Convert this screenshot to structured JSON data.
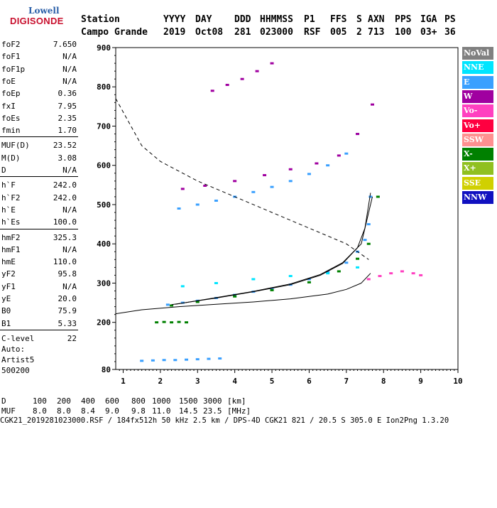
{
  "logo": {
    "top": "Lowell",
    "main": "DIGISONDE"
  },
  "header": {
    "labels": [
      "Station",
      "YYYY",
      "DAY",
      "DDD",
      "HHMMSS",
      "P1",
      "FFS",
      "S",
      "AXN",
      "PPS",
      "IGA",
      "PS"
    ],
    "values": [
      "Campo Grande",
      "2019",
      "Oct08",
      "281",
      "023000",
      "RSF",
      "005",
      "2",
      "713",
      "100",
      "03+",
      "36"
    ]
  },
  "parameters": [
    {
      "label": "foF2",
      "value": "7.650"
    },
    {
      "label": "foF1",
      "value": "N/A"
    },
    {
      "label": "foF1p",
      "value": "N/A"
    },
    {
      "label": "foE",
      "value": "N/A"
    },
    {
      "label": "foEp",
      "value": "0.36"
    },
    {
      "label": "fxI",
      "value": "7.95"
    },
    {
      "label": "foEs",
      "value": "2.35"
    },
    {
      "label": "fmin",
      "value": "1.70"
    },
    {
      "label": "MUF(D)",
      "value": "23.52"
    },
    {
      "label": "M(D)",
      "value": "3.08"
    },
    {
      "label": "D",
      "value": "N/A"
    },
    {
      "label": "h`F",
      "value": "242.0"
    },
    {
      "label": "h`F2",
      "value": "242.0"
    },
    {
      "label": "h`E",
      "value": "N/A"
    },
    {
      "label": "h`Es",
      "value": "100.0"
    },
    {
      "label": "hmF2",
      "value": "325.3"
    },
    {
      "label": "hmF1",
      "value": "N/A"
    },
    {
      "label": "hmE",
      "value": "110.0"
    },
    {
      "label": "yF2",
      "value": "95.8"
    },
    {
      "label": "yF1",
      "value": "N/A"
    },
    {
      "label": "yE",
      "value": "20.0"
    },
    {
      "label": "B0",
      "value": "75.9"
    },
    {
      "label": "B1",
      "value": "5.33"
    },
    {
      "label": "C-level",
      "value": "22"
    }
  ],
  "auto": {
    "title": "Auto:",
    "program": "Artist5",
    "code": "500200"
  },
  "legend": [
    {
      "label": "NoVal",
      "color": "#808080"
    },
    {
      "label": "NNE",
      "color": "#00e5ff"
    },
    {
      "label": "E",
      "color": "#3aa0ff"
    },
    {
      "label": "W",
      "color": "#a000a0"
    },
    {
      "label": "Vo-",
      "color": "#ff40c0"
    },
    {
      "label": "Vo+",
      "color": "#ff0040"
    },
    {
      "label": "SSW",
      "color": "#ff9090"
    },
    {
      "label": "X-",
      "color": "#008000"
    },
    {
      "label": "X+",
      "color": "#90c020"
    },
    {
      "label": "SSE",
      "color": "#d0d000"
    },
    {
      "label": "NNW",
      "color": "#1010c0"
    }
  ],
  "footer": {
    "row_d": {
      "label": "D",
      "values": [
        "100",
        "200",
        "400",
        "600",
        "800",
        "1000",
        "1500",
        "3000",
        "[km]"
      ]
    },
    "row_muf": {
      "label": "MUF",
      "values": [
        "8.0",
        "8.0",
        "8.4",
        "9.0",
        "9.8",
        "11.0",
        "14.5",
        "23.5",
        "[MHz]"
      ]
    },
    "file_line": "CGK21_2019281023000.RSF / 184fx512h 50 kHz 2.5 km / DPS-4D CGK21 821 / 20.5 S 305.0 E Ion2Png 1.3.20"
  },
  "chart_data": {
    "type": "scatter",
    "title": "",
    "xlabel": "",
    "ylabel": "",
    "xlim": [
      0.8,
      10
    ],
    "ylim": [
      80,
      900
    ],
    "x_ticks": [
      1,
      2,
      3,
      4,
      5,
      6,
      7,
      8,
      9,
      10
    ],
    "y_ticks": [
      80,
      200,
      300,
      400,
      500,
      600,
      700,
      800,
      900
    ],
    "traces": [
      {
        "name": "E",
        "band": "o-trace",
        "x": [
          2.2,
          2.6,
          3.0,
          3.5,
          4.0,
          4.5,
          5.0,
          5.5,
          6.0,
          6.5,
          7.0,
          7.3,
          7.5,
          7.6,
          7.65
        ],
        "y": [
          245,
          250,
          255,
          262,
          270,
          278,
          286,
          296,
          310,
          328,
          352,
          380,
          410,
          450,
          520
        ]
      },
      {
        "name": "X-",
        "band": "x-trace",
        "x": [
          2.3,
          3.0,
          4.0,
          5.0,
          6.0,
          6.8,
          7.3,
          7.6,
          7.85
        ],
        "y": [
          243,
          252,
          266,
          282,
          302,
          330,
          362,
          400,
          520
        ]
      },
      {
        "name": "E",
        "band": "2nd-hop",
        "x": [
          2.5,
          3.0,
          3.5,
          4.0,
          4.5,
          5.0,
          5.5,
          6.0,
          6.5,
          7.0,
          7.3
        ],
        "y": [
          490,
          500,
          510,
          520,
          532,
          545,
          560,
          578,
          600,
          630,
          680
        ]
      },
      {
        "name": "W",
        "band": "2nd-hop",
        "x": [
          2.6,
          3.2,
          4.0,
          4.8,
          5.5,
          6.2,
          6.8,
          7.3,
          7.7
        ],
        "y": [
          540,
          548,
          560,
          575,
          590,
          605,
          625,
          680,
          755
        ]
      },
      {
        "name": "W",
        "band": "3rd-hop",
        "x": [
          3.4,
          3.8,
          4.2,
          4.6,
          5.0
        ],
        "y": [
          790,
          805,
          820,
          840,
          860
        ]
      },
      {
        "name": "E",
        "band": "Es",
        "x": [
          1.5,
          1.8,
          2.1,
          2.4,
          2.7,
          3.0,
          3.3,
          3.6
        ],
        "y": [
          102,
          103,
          104,
          104,
          105,
          106,
          107,
          108
        ]
      },
      {
        "name": "Vo-",
        "band": "spread",
        "x": [
          7.6,
          7.9,
          8.2,
          8.5,
          8.8,
          9.0
        ],
        "y": [
          310,
          318,
          325,
          330,
          325,
          320
        ]
      },
      {
        "name": "NNE",
        "band": "spread",
        "x": [
          2.6,
          3.5,
          4.5,
          5.5,
          6.5,
          7.3
        ],
        "y": [
          292,
          300,
          310,
          318,
          325,
          340
        ]
      },
      {
        "name": "X-",
        "band": "Es",
        "x": [
          1.9,
          2.1,
          2.3,
          2.5,
          2.7
        ],
        "y": [
          200,
          201,
          200,
          201,
          200
        ]
      }
    ],
    "profile_curves": [
      {
        "name": "ordinary",
        "x": [
          2.3,
          3.5,
          4.5,
          5.5,
          6.3,
          6.9,
          7.3,
          7.5,
          7.65
        ],
        "y": [
          245,
          262,
          278,
          296,
          320,
          350,
          390,
          440,
          530
        ]
      },
      {
        "name": "extraordinary",
        "x": [
          2.4,
          3.5,
          4.5,
          5.5,
          6.3,
          6.9,
          7.4,
          7.7
        ],
        "y": [
          246,
          263,
          279,
          298,
          322,
          352,
          400,
          520
        ]
      },
      {
        "name": "real-height",
        "x": [
          0.8,
          1.5,
          2.5,
          3.5,
          4.5,
          5.5,
          6.5,
          7.0,
          7.4,
          7.65
        ],
        "y": [
          222,
          232,
          240,
          246,
          252,
          260,
          272,
          284,
          300,
          325
        ]
      },
      {
        "name": "MUF",
        "x": [
          0.8,
          1.5,
          2.0,
          3.0,
          4.0,
          5.0,
          6.0,
          7.0,
          7.6
        ],
        "y": [
          770,
          650,
          610,
          560,
          520,
          480,
          440,
          400,
          360
        ]
      }
    ]
  }
}
